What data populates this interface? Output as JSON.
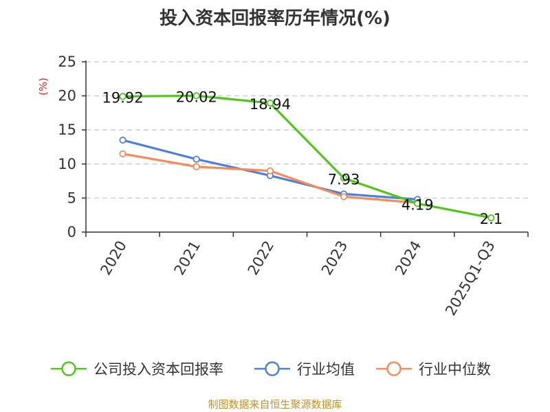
{
  "chart_data": {
    "type": "line",
    "title": "投入资本回报率历年情况(%)",
    "ylabel": "(%)",
    "xlabel": "",
    "categories": [
      "2020",
      "2021",
      "2022",
      "2023",
      "2024",
      "2025Q1-Q3"
    ],
    "ylim": [
      0,
      25
    ],
    "yticks": [
      0,
      5,
      10,
      15,
      20,
      25
    ],
    "grid": true,
    "legend_position": "bottom",
    "series": [
      {
        "name": "公司投入资本回报率",
        "color": "#52c41a",
        "values": [
          19.92,
          20.02,
          18.94,
          7.93,
          4.19,
          2.1
        ],
        "labels": [
          "19.92",
          "20.02",
          "18.94",
          "7.93",
          "4.19",
          "2.1"
        ]
      },
      {
        "name": "行业均值",
        "color": "#4e7fd9",
        "values": [
          13.5,
          10.7,
          8.3,
          5.6,
          4.8,
          null
        ]
      },
      {
        "name": "行业中位数",
        "color": "#f58b5a",
        "values": [
          11.5,
          9.6,
          9.0,
          5.2,
          4.3,
          null
        ]
      }
    ]
  },
  "source_text": "制图数据来自恒生聚源数据库",
  "colors": {
    "axis": "#333333",
    "grid": "#c8c8c8",
    "ylabel": "#e02020",
    "source": "#c0902a"
  }
}
